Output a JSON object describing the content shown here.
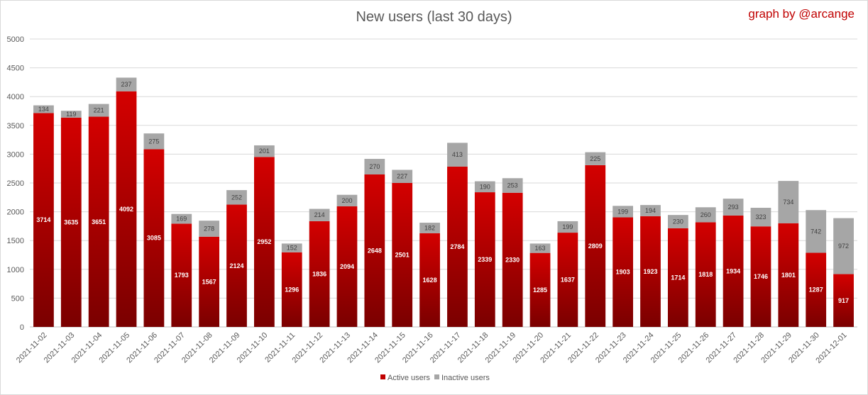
{
  "chart_data": {
    "type": "bar",
    "stacked": true,
    "title": "New users (last 30 days)",
    "credit": "graph by @arcange",
    "categories": [
      "2021-11-02",
      "2021-11-03",
      "2021-11-04",
      "2021-11-05",
      "2021-11-06",
      "2021-11-07",
      "2021-11-08",
      "2021-11-09",
      "2021-11-10",
      "2021-11-11",
      "2021-11-12",
      "2021-11-13",
      "2021-11-14",
      "2021-11-15",
      "2021-11-16",
      "2021-11-17",
      "2021-11-18",
      "2021-11-19",
      "2021-11-20",
      "2021-11-21",
      "2021-11-22",
      "2021-11-23",
      "2021-11-24",
      "2021-11-25",
      "2021-11-26",
      "2021-11-27",
      "2021-11-28",
      "2021-11-29",
      "2021-11-30",
      "2021-12-01"
    ],
    "series": [
      {
        "name": "Active users",
        "color": "#c00000",
        "values": [
          3714,
          3635,
          3651,
          4092,
          3085,
          1793,
          1567,
          2124,
          2952,
          1296,
          1836,
          2094,
          2648,
          2501,
          1628,
          2784,
          2339,
          2330,
          1285,
          1637,
          2809,
          1903,
          1923,
          1714,
          1818,
          1934,
          1746,
          1801,
          1287,
          917
        ]
      },
      {
        "name": "Inactive users",
        "color": "#a6a6a6",
        "values": [
          134,
          119,
          221,
          237,
          275,
          169,
          278,
          252,
          201,
          152,
          214,
          200,
          270,
          227,
          182,
          413,
          190,
          253,
          163,
          199,
          225,
          199,
          194,
          230,
          260,
          293,
          323,
          734,
          742,
          972
        ]
      }
    ],
    "yticks": [
      0,
      500,
      1000,
      1500,
      2000,
      2500,
      3000,
      3500,
      4000,
      4500,
      5000
    ],
    "ylim": [
      0,
      5000
    ],
    "grid": true,
    "legend_position": "bottom"
  }
}
